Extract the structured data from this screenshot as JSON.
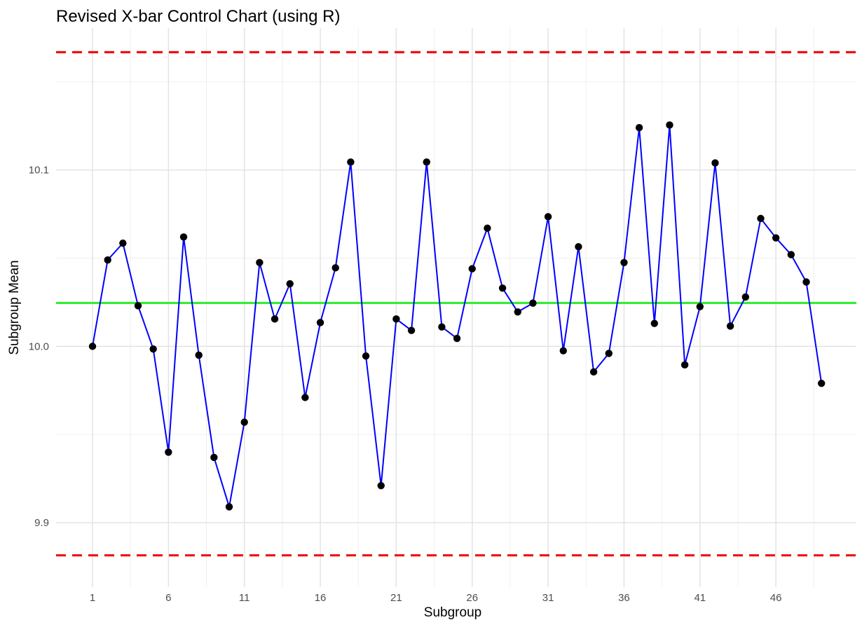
{
  "chart_data": {
    "type": "line",
    "title": "Revised X-bar Control Chart (using R)",
    "xlabel": "Subgroup",
    "ylabel": "Subgroup Mean",
    "xlim": [
      -1.4,
      51.3
    ],
    "ylim": [
      9.8635,
      10.1805
    ],
    "x_ticks": [
      1,
      6,
      11,
      16,
      21,
      26,
      31,
      36,
      41,
      46
    ],
    "y_ticks": [
      9.9,
      10.0,
      10.1
    ],
    "y_tick_labels": [
      "9.9",
      "10.0",
      "10.1"
    ],
    "grid": true,
    "center_line": 10.0246,
    "ucl": 10.1668,
    "lcl": 9.8815,
    "colors": {
      "series_line": "#0000ff",
      "points": "#000000",
      "center_line": "#33ee33",
      "control_limits": "#ee1111"
    },
    "x": [
      1,
      2,
      3,
      4,
      5,
      6,
      7,
      8,
      9,
      10,
      11,
      12,
      13,
      14,
      15,
      16,
      17,
      18,
      19,
      20,
      21,
      22,
      23,
      24,
      25,
      26,
      27,
      28,
      29,
      30,
      31,
      32,
      33,
      34,
      35,
      36,
      37,
      38,
      39,
      40,
      41,
      42,
      43,
      44,
      45,
      46,
      47,
      48,
      49
    ],
    "values": [
      10.0,
      10.049,
      10.0585,
      10.023,
      9.9985,
      9.94,
      10.062,
      9.995,
      9.937,
      9.909,
      9.957,
      10.0475,
      10.0155,
      10.0355,
      9.971,
      10.0135,
      10.0445,
      10.1045,
      9.9945,
      9.921,
      10.0155,
      10.009,
      10.1045,
      10.011,
      10.0045,
      10.044,
      10.067,
      10.033,
      10.0195,
      10.0245,
      10.0735,
      9.9975,
      10.0565,
      9.9855,
      9.996,
      10.0475,
      10.124,
      10.013,
      10.1255,
      9.9895,
      10.0225,
      10.104,
      10.0115,
      10.028,
      10.0725,
      10.0615,
      10.052,
      10.0365,
      9.979
    ]
  }
}
